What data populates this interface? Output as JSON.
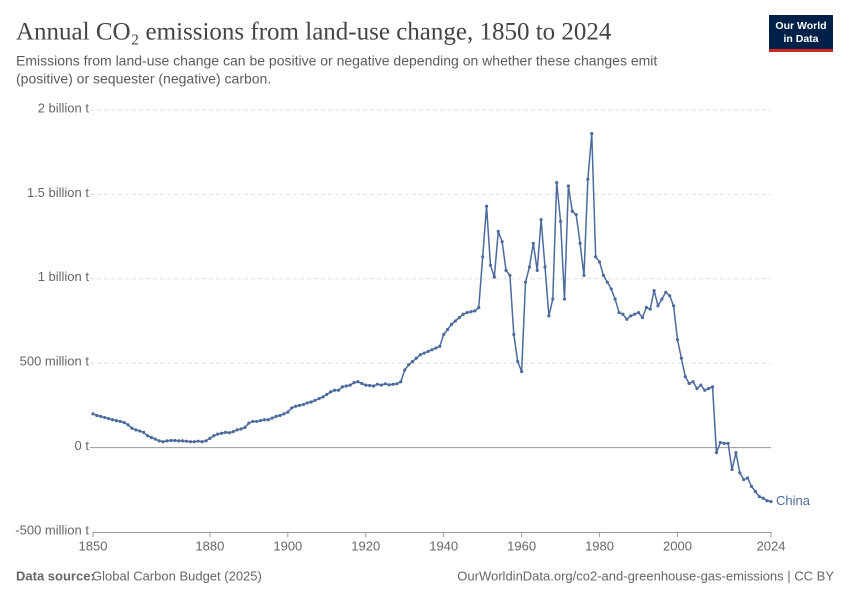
{
  "chart_data": {
    "type": "line",
    "title": "Annual CO₂ emissions from land-use change, 1850 to 2024",
    "subtitle": [
      "Emissions from land-use change can be positive or negative depending on whether these changes emit",
      "(positive) or sequester (negative) carbon."
    ],
    "logo": [
      "Our World",
      "in Data"
    ],
    "source_label": "Data source:",
    "source": "Global Carbon Budget (2025)",
    "url": "OurWorldinData.org/co2-and-greenhouse-gas-emissions | CC BY",
    "x": [
      1850,
      1851,
      1852,
      1853,
      1854,
      1855,
      1856,
      1857,
      1858,
      1859,
      1860,
      1861,
      1862,
      1863,
      1864,
      1865,
      1866,
      1867,
      1868,
      1869,
      1870,
      1871,
      1872,
      1873,
      1874,
      1875,
      1876,
      1877,
      1878,
      1879,
      1880,
      1881,
      1882,
      1883,
      1884,
      1885,
      1886,
      1887,
      1888,
      1889,
      1890,
      1891,
      1892,
      1893,
      1894,
      1895,
      1896,
      1897,
      1898,
      1899,
      1900,
      1901,
      1902,
      1903,
      1904,
      1905,
      1906,
      1907,
      1908,
      1909,
      1910,
      1911,
      1912,
      1913,
      1914,
      1915,
      1916,
      1917,
      1918,
      1919,
      1920,
      1921,
      1922,
      1923,
      1924,
      1925,
      1926,
      1927,
      1928,
      1929,
      1930,
      1931,
      1932,
      1933,
      1934,
      1935,
      1936,
      1937,
      1938,
      1939,
      1940,
      1941,
      1942,
      1943,
      1944,
      1945,
      1946,
      1947,
      1948,
      1949,
      1950,
      1951,
      1952,
      1953,
      1954,
      1955,
      1956,
      1957,
      1958,
      1959,
      1960,
      1961,
      1962,
      1963,
      1964,
      1965,
      1966,
      1967,
      1968,
      1969,
      1970,
      1971,
      1972,
      1973,
      1974,
      1975,
      1976,
      1977,
      1978,
      1979,
      1980,
      1981,
      1982,
      1983,
      1984,
      1985,
      1986,
      1987,
      1988,
      1989,
      1990,
      1991,
      1992,
      1993,
      1994,
      1995,
      1996,
      1997,
      1998,
      1999,
      2000,
      2001,
      2002,
      2003,
      2004,
      2005,
      2006,
      2007,
      2008,
      2009,
      2010,
      2011,
      2012,
      2013,
      2014,
      2015,
      2016,
      2017,
      2018,
      2019,
      2020,
      2021,
      2022,
      2023,
      2024
    ],
    "series": [
      {
        "name": "China",
        "color": "#4c6a9c",
        "values": [
          200000000,
          190000000,
          185000000,
          178000000,
          172000000,
          165000000,
          160000000,
          155000000,
          148000000,
          135000000,
          115000000,
          105000000,
          98000000,
          90000000,
          70000000,
          60000000,
          50000000,
          40000000,
          35000000,
          40000000,
          42000000,
          42000000,
          40000000,
          40000000,
          38000000,
          35000000,
          35000000,
          38000000,
          35000000,
          40000000,
          55000000,
          70000000,
          80000000,
          85000000,
          90000000,
          88000000,
          95000000,
          105000000,
          110000000,
          120000000,
          145000000,
          155000000,
          155000000,
          160000000,
          165000000,
          165000000,
          175000000,
          185000000,
          190000000,
          200000000,
          210000000,
          235000000,
          245000000,
          250000000,
          255000000,
          265000000,
          270000000,
          280000000,
          290000000,
          300000000,
          315000000,
          330000000,
          340000000,
          340000000,
          360000000,
          365000000,
          370000000,
          385000000,
          390000000,
          380000000,
          370000000,
          368000000,
          365000000,
          375000000,
          370000000,
          378000000,
          372000000,
          375000000,
          378000000,
          390000000,
          460000000,
          490000000,
          510000000,
          530000000,
          550000000,
          560000000,
          570000000,
          580000000,
          590000000,
          600000000,
          670000000,
          700000000,
          730000000,
          750000000,
          770000000,
          790000000,
          800000000,
          805000000,
          810000000,
          830000000,
          1130000000,
          1430000000,
          1080000000,
          1010000000,
          1280000000,
          1220000000,
          1050000000,
          1020000000,
          670000000,
          510000000,
          450000000,
          980000000,
          1070000000,
          1210000000,
          1050000000,
          1350000000,
          1070000000,
          780000000,
          880000000,
          1570000000,
          1340000000,
          880000000,
          1550000000,
          1400000000,
          1380000000,
          1210000000,
          1020000000,
          1590000000,
          1860000000,
          1130000000,
          1100000000,
          1020000000,
          980000000,
          940000000,
          880000000,
          800000000,
          790000000,
          760000000,
          780000000,
          790000000,
          800000000,
          770000000,
          830000000,
          820000000,
          930000000,
          840000000,
          880000000,
          920000000,
          900000000,
          840000000,
          640000000,
          530000000,
          420000000,
          380000000,
          390000000,
          350000000,
          370000000,
          340000000,
          350000000,
          360000000,
          -30000000,
          30000000,
          25000000,
          25000000,
          -130000000,
          -30000000,
          -150000000,
          -190000000,
          -180000000,
          -230000000,
          -260000000,
          -290000000,
          -300000000,
          -315000000,
          -320000000
        ]
      }
    ],
    "xlim": [
      1850,
      2024
    ],
    "xticks": [
      1850,
      1880,
      1900,
      1920,
      1940,
      1960,
      1980,
      2000,
      2024
    ],
    "ylim": [
      -500000000,
      2000000000
    ],
    "yticks": [
      {
        "value": -500000000,
        "label": "-500 million t"
      },
      {
        "value": 0,
        "label": "0 t"
      },
      {
        "value": 500000000,
        "label": "500 million t"
      },
      {
        "value": 1000000000,
        "label": "1 billion t"
      },
      {
        "value": 1500000000,
        "label": "1.5 billion t"
      },
      {
        "value": 2000000000,
        "label": "2 billion t"
      }
    ],
    "grid": true
  }
}
